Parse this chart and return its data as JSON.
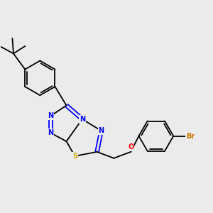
{
  "background_color": "#ebebeb",
  "bond_color": "#000000",
  "N_color": "#0000ff",
  "S_color": "#ccaa00",
  "O_color": "#ff0000",
  "Br_color": "#cc7700",
  "lw": 1.3,
  "fs": 7.0,
  "xlim": [
    0,
    10
  ],
  "ylim": [
    0,
    10
  ]
}
